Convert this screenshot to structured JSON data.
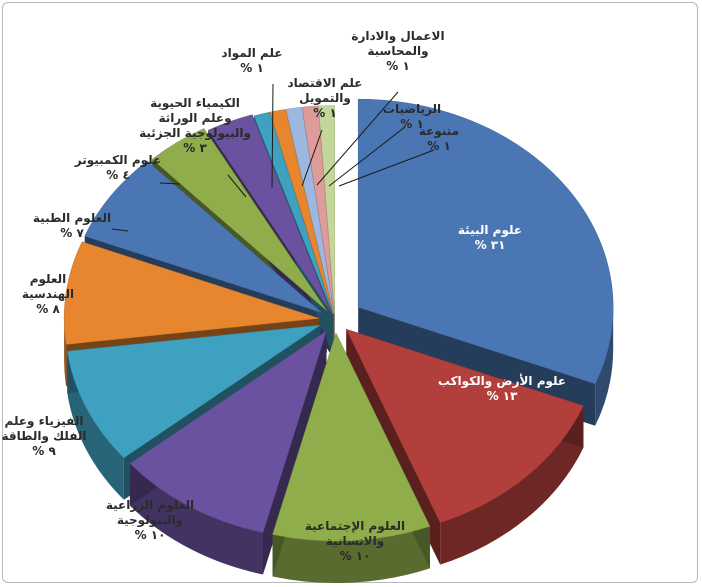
{
  "chart_data": {
    "type": "pie",
    "style": "exploded-3d",
    "title": "",
    "legend": "none",
    "slices": [
      {
        "label": "علوم البيئة",
        "value_text": "٣١ %",
        "value": 31,
        "color": "#4a77b4",
        "label_inside": true
      },
      {
        "label": "علوم الأرض والكواكب",
        "value_text": "١٣ %",
        "value": 13,
        "color": "#b33f3c",
        "label_inside": true
      },
      {
        "label": "العلوم الإجتماعية والانسانية",
        "value_text": "١٠ %",
        "value": 10,
        "color": "#8fad4b",
        "label_inside": false
      },
      {
        "label": "العلوم الزراعية والبيولوجية",
        "value_text": "١٠ %",
        "value": 10,
        "color": "#6b52a0",
        "label_inside": false
      },
      {
        "label": "الفيزياء وعلم الفلك والطاقة",
        "value_text": "٩ %",
        "value": 9,
        "color": "#3fa1c0",
        "label_inside": false
      },
      {
        "label": "العلوم الهندسية",
        "value_text": "٨ %",
        "value": 8,
        "color": "#e7862e",
        "label_inside": false
      },
      {
        "label": "العلوم الطبية",
        "value_text": "٧ %",
        "value": 7,
        "color": "#4a77b4",
        "label_inside": false
      },
      {
        "label": "علوم الكمبيوتر",
        "value_text": "٤ %",
        "value": 4,
        "color": "#8fad4b",
        "label_inside": false
      },
      {
        "label": "الكيمياء الحيوية وعلم الوراثة والبيولوجية الجزئية",
        "value_text": "٣ %",
        "value": 3,
        "color": "#6b52a0",
        "label_inside": false
      },
      {
        "label": "علم المواد",
        "value_text": "١ %",
        "value": 1,
        "color": "#3fa1c0",
        "label_inside": false
      },
      {
        "label": "علم الاقتصاد والتمويل",
        "value_text": "١ %",
        "value": 1,
        "color": "#e7862e",
        "label_inside": false
      },
      {
        "label": "الاعمال والادارة والمحاسبة",
        "value_text": "١ %",
        "value": 1,
        "color": "#9db7de",
        "label_inside": false
      },
      {
        "label": "الرياضيات",
        "value_text": "١ %",
        "value": 1,
        "color": "#dd9c9a",
        "label_inside": false
      },
      {
        "label": "متنوعة",
        "value_text": "١ %",
        "value": 1,
        "color": "#c4d79b",
        "label_inside": false
      }
    ]
  }
}
